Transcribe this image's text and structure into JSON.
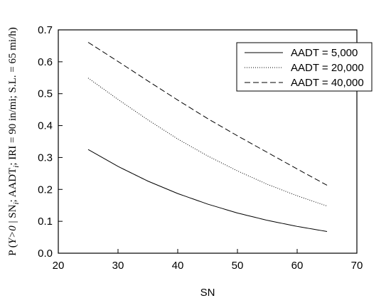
{
  "chart_data": {
    "type": "line",
    "xlabel": "SN",
    "ylabel_parts": [
      "P (",
      "Y>0",
      " | SN",
      "i",
      "; AADT",
      "i",
      "; IRI = 90 in/mi; S.L. = 65 mi/h)"
    ],
    "xlim": [
      20,
      70
    ],
    "ylim": [
      0,
      0.7
    ],
    "xticks": [
      "20",
      "30",
      "40",
      "50",
      "60",
      "70"
    ],
    "yticks": [
      "0.0",
      "0.1",
      "0.2",
      "0.3",
      "0.4",
      "0.5",
      "0.6",
      "0.7"
    ],
    "grid": false,
    "legend_position": "top-right",
    "x": [
      25,
      30,
      35,
      40,
      45,
      50,
      55,
      60,
      65
    ],
    "series": [
      {
        "name": "AADT = 5,000",
        "style": "solid",
        "values": [
          0.325,
          0.272,
          0.226,
          0.187,
          0.154,
          0.126,
          0.103,
          0.084,
          0.068
        ]
      },
      {
        "name": "AADT = 20,000",
        "style": "dotted",
        "values": [
          0.549,
          0.482,
          0.418,
          0.358,
          0.305,
          0.258,
          0.216,
          0.18,
          0.148
        ]
      },
      {
        "name": "AADT = 40,000",
        "style": "dashed",
        "values": [
          0.661,
          0.601,
          0.54,
          0.48,
          0.422,
          0.368,
          0.316,
          0.264,
          0.213
        ]
      }
    ]
  }
}
